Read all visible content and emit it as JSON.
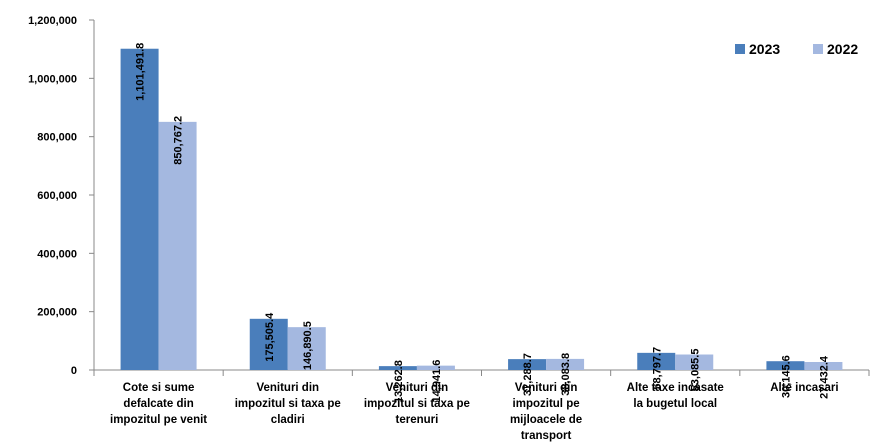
{
  "chart_data": {
    "type": "bar",
    "categories": [
      [
        "Cote si sume",
        "defalcate din",
        "impozitul pe venit"
      ],
      [
        "Venituri din",
        "impozitul si taxa pe",
        "cladiri"
      ],
      [
        "Venituri din",
        "impozitul si taxa pe",
        "terenuri"
      ],
      [
        "Venituri din",
        "impozitul pe",
        "mijloacele de",
        "transport"
      ],
      [
        "Alte taxe incasate",
        "la bugetul local"
      ],
      [
        "Alte incasari"
      ]
    ],
    "series": [
      {
        "name": "2023",
        "color": "#4a7ebb",
        "values": [
          1101491.8,
          175505.4,
          13262.8,
          37288.7,
          58797.7,
          30145.6
        ],
        "labels": [
          "1,101,491.8",
          "175,505.4",
          "13,262.8",
          "37,288.7",
          "58,797.7",
          "30,145.6"
        ]
      },
      {
        "name": "2022",
        "color": "#a4b8e0",
        "values": [
          850767.2,
          146890.5,
          14941.6,
          38083.8,
          53085.5,
          27432.4
        ],
        "labels": [
          "850,767.2",
          "146,890.5",
          "14,941.6",
          "38,083.8",
          "53,085.5",
          "27,432.4"
        ]
      }
    ],
    "y_ticks": [
      0,
      200000,
      400000,
      600000,
      800000,
      1000000,
      1200000
    ],
    "y_tick_labels": [
      "0",
      "200,000",
      "400,000",
      "600,000",
      "800,000",
      "1,000,000",
      "1,200,000"
    ],
    "ylim": [
      0,
      1200000
    ],
    "grid": false,
    "legend_position": "top-right",
    "title": "",
    "xlabel": "",
    "ylabel": ""
  }
}
